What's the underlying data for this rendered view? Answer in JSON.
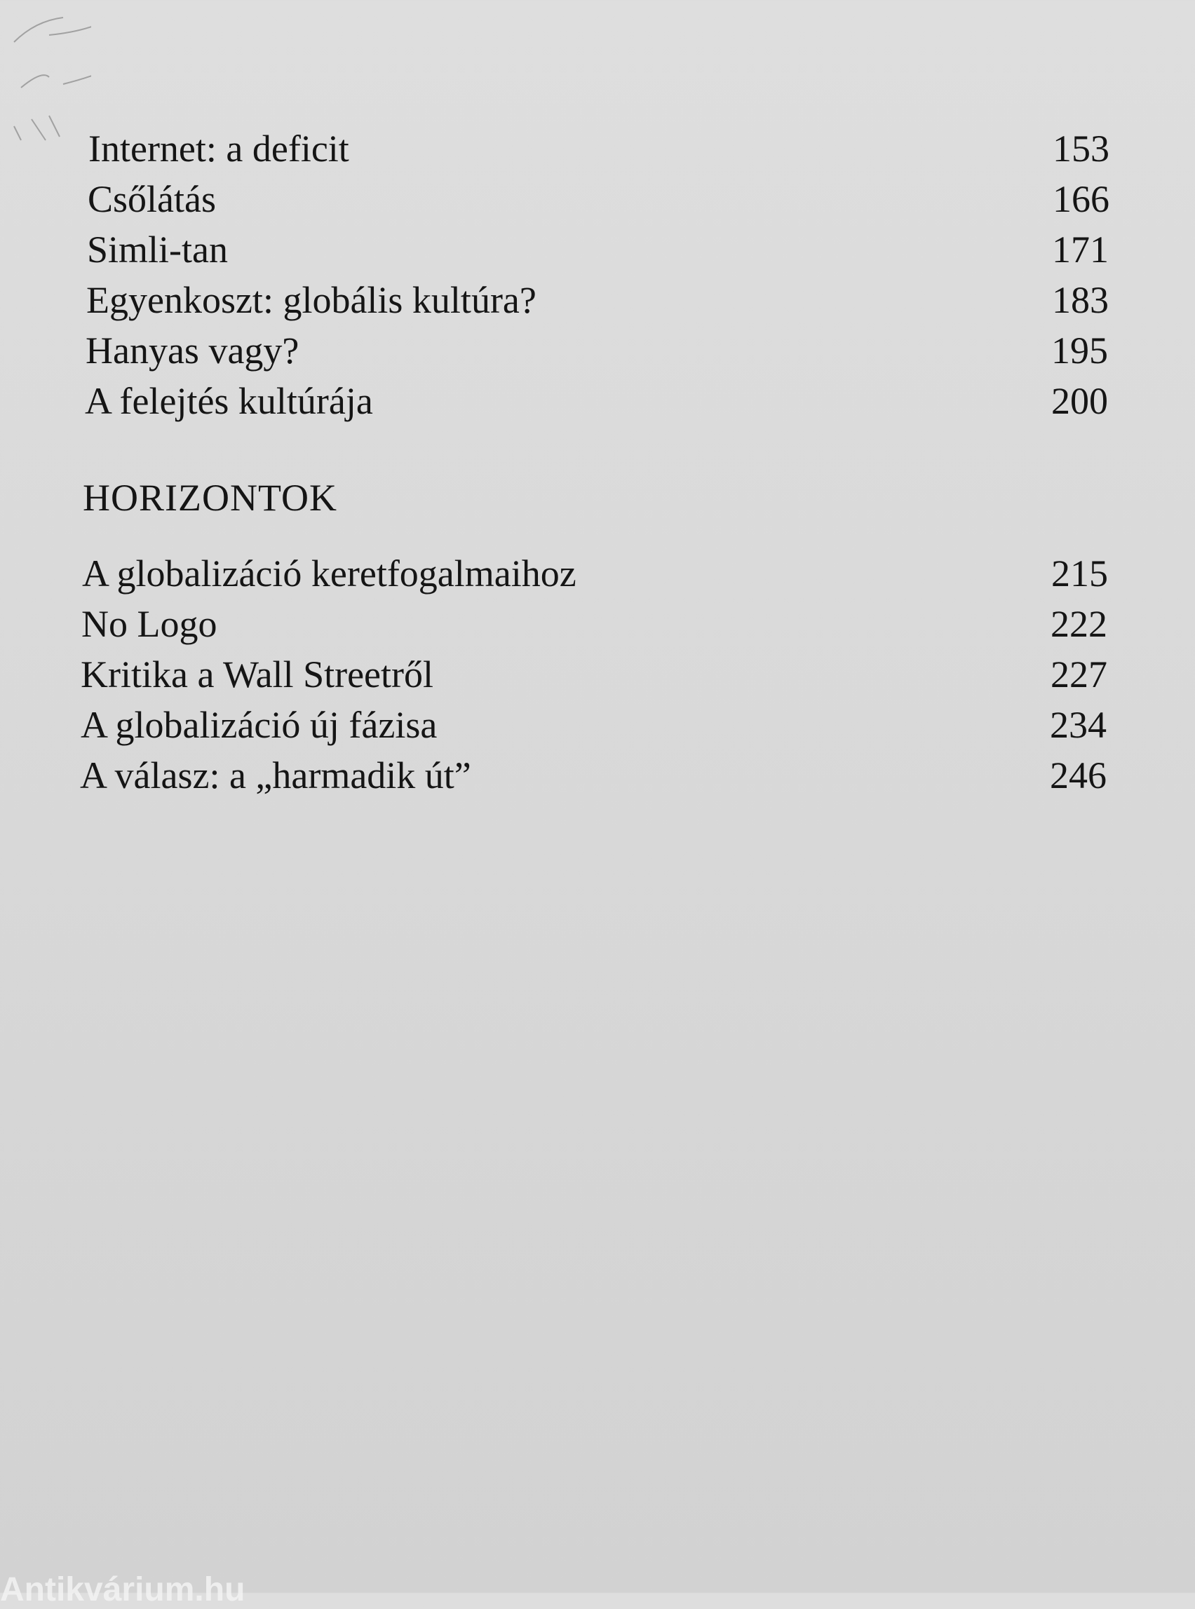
{
  "toc": {
    "section1_entries": [
      {
        "title": "Internet: a deficit",
        "page": "153"
      },
      {
        "title": "Csőlátás",
        "page": "166"
      },
      {
        "title": "Simli-tan",
        "page": "171"
      },
      {
        "title": "Egyenkoszt: globális kultúra?",
        "page": "183"
      },
      {
        "title": "Hanyas vagy?",
        "page": "195"
      },
      {
        "title": "A felejtés kultúrája",
        "page": "200"
      }
    ],
    "section2_heading": "HORIZONTOK",
    "section2_entries": [
      {
        "title": "A globalizáció keretfogalmaihoz",
        "page": "215"
      },
      {
        "title": "No Logo",
        "page": "222"
      },
      {
        "title": "Kritika a Wall Streetről",
        "page": "227"
      },
      {
        "title": "A globalizáció új fázisa",
        "page": "234"
      },
      {
        "title": "A válasz: a „harmadik út”",
        "page": "246"
      }
    ]
  },
  "watermark": "Antikvárium.hu"
}
